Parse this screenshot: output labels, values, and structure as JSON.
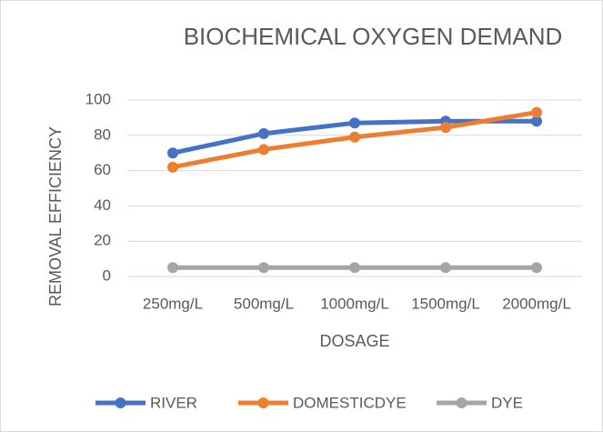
{
  "chart_data": {
    "type": "line",
    "title": "BIOCHEMICAL OXYGEN DEMAND",
    "x_label": "DOSAGE",
    "y_label": "REMOVAL EFFICIENCY",
    "categories": [
      "250mg/L",
      "500mg/L",
      "1000mg/L",
      "1500mg/L",
      "2000mg/L"
    ],
    "series": [
      {
        "name": "RIVER",
        "color": "#4472c4",
        "values": [
          70,
          81,
          87,
          88,
          88
        ]
      },
      {
        "name": "DOMESTICDYE",
        "color": "#ed7d31",
        "values": [
          62,
          72,
          79,
          84.5,
          93
        ]
      },
      {
        "name": "DYE",
        "color": "#a5a5a5",
        "values": [
          5,
          5,
          5,
          5,
          5
        ]
      }
    ],
    "ylim": [
      0,
      100
    ],
    "yticks": [
      0,
      20,
      40,
      60,
      80,
      100
    ],
    "grid": true,
    "legend": "bottom"
  }
}
